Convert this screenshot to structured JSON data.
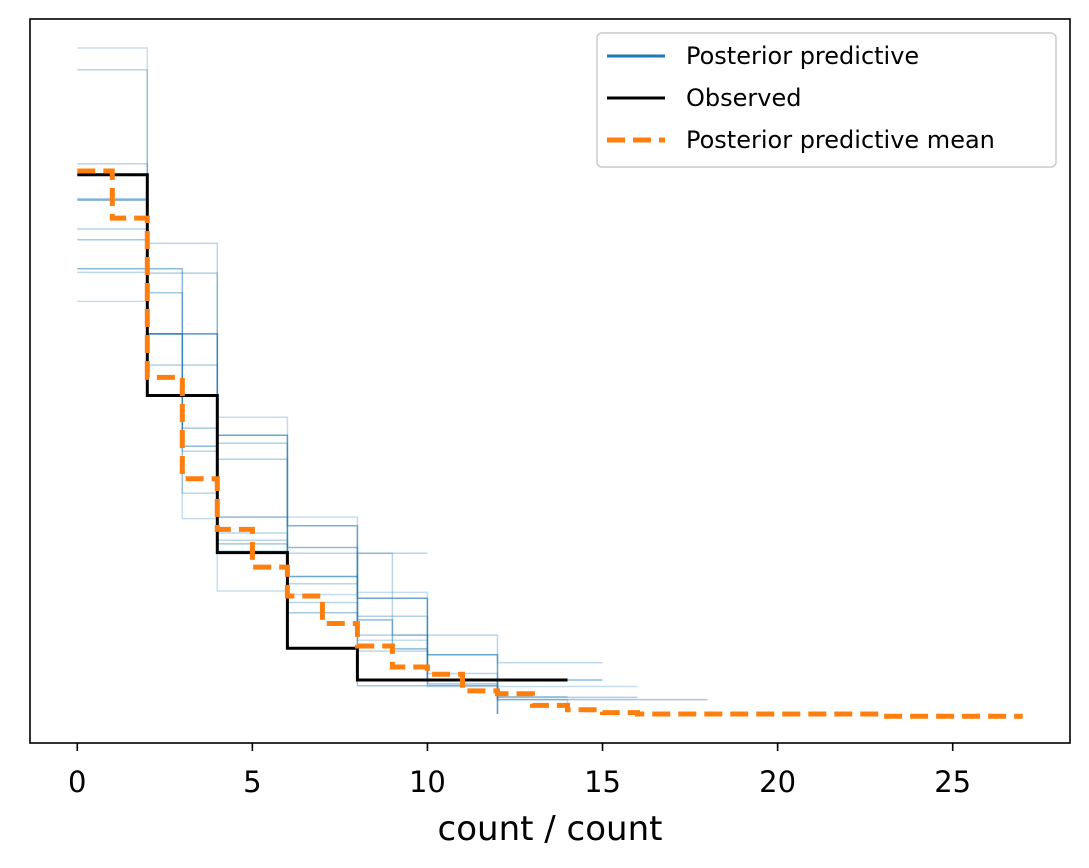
{
  "chart_data": {
    "type": "line",
    "title": "",
    "xlabel": "count / count",
    "ylabel": "",
    "xlim": [
      -1.35,
      28.35
    ],
    "ylim": [
      0,
      1
    ],
    "x_ticks": [
      0,
      5,
      10,
      15,
      20,
      25
    ],
    "y_ticks_shown": false,
    "grid": false,
    "legend": {
      "placement": "top-right",
      "entries": [
        {
          "label": "Posterior predictive",
          "color": "#1f77b4",
          "style": "solid"
        },
        {
          "label": "Observed",
          "color": "#000000",
          "style": "solid"
        },
        {
          "label": "Posterior predictive mean",
          "color": "#ff7f0e",
          "style": "dashed"
        }
      ]
    },
    "colors": {
      "posterior_predictive": "#1f77b4",
      "observed": "#000000",
      "mean": "#ff7f0e"
    },
    "series": [
      {
        "name": "Observed",
        "step": "post",
        "x": [
          0,
          2,
          4,
          6,
          8,
          14
        ],
        "y": [
          0.785,
          0.48,
          0.263,
          0.131,
          0.087,
          0.087
        ]
      },
      {
        "name": "Posterior predictive mean",
        "step": "post",
        "x": [
          0,
          1,
          2,
          3,
          4,
          5,
          6,
          7,
          8,
          9,
          10,
          11,
          12,
          13,
          14,
          15,
          16,
          17,
          18,
          19,
          20,
          21,
          22,
          23,
          24,
          25,
          26,
          27
        ],
        "y": [
          0.79,
          0.725,
          0.505,
          0.365,
          0.295,
          0.243,
          0.203,
          0.165,
          0.134,
          0.105,
          0.095,
          0.072,
          0.068,
          0.052,
          0.046,
          0.042,
          0.04,
          0.04,
          0.04,
          0.04,
          0.04,
          0.04,
          0.04,
          0.037,
          0.037,
          0.037,
          0.037,
          0.037
        ]
      },
      {
        "name": "Posterior predictive",
        "samples": [
          {
            "x": [
              0,
              2,
              4,
              6,
              8,
              10,
              12
            ],
            "y": [
              0.96,
              0.565,
              0.45,
              0.312,
              0.208,
              0.08,
              0.04
            ],
            "alpha": 0.25
          },
          {
            "x": [
              0,
              2,
              4,
              6,
              8,
              10,
              12
            ],
            "y": [
              0.75,
              0.565,
              0.425,
              0.23,
              0.2,
              0.122,
              0.04
            ],
            "alpha": 0.65
          },
          {
            "x": [
              0,
              3,
              4,
              6,
              8,
              9,
              10,
              15
            ],
            "y": [
              0.655,
              0.41,
              0.312,
              0.27,
              0.17,
              0.13,
              0.087,
              0.087
            ],
            "alpha": 0.5
          },
          {
            "x": [
              0,
              2,
              4,
              6,
              8,
              10,
              12,
              16
            ],
            "y": [
              0.71,
              0.522,
              0.392,
              0.3,
              0.175,
              0.082,
              0.063,
              0.063
            ],
            "alpha": 0.35
          },
          {
            "x": [
              0,
              2,
              3,
              4,
              6,
              8,
              10,
              16
            ],
            "y": [
              0.61,
              0.565,
              0.31,
              0.21,
              0.205,
              0.142,
              0.078,
              0.078
            ],
            "alpha": 0.25
          },
          {
            "x": [
              0,
              2,
              4,
              6,
              8,
              10
            ],
            "y": [
              0.93,
              0.69,
              0.28,
              0.22,
              0.262,
              0.262
            ],
            "alpha": 0.3
          },
          {
            "x": [
              0,
              2,
              3,
              4,
              6,
              8,
              12,
              18
            ],
            "y": [
              0.695,
              0.622,
              0.435,
              0.275,
              0.18,
              0.079,
              0.06,
              0.06
            ],
            "alpha": 0.4
          },
          {
            "x": [
              0,
              2,
              3,
              4,
              6,
              9,
              12,
              15
            ],
            "y": [
              0.8,
              0.565,
              0.345,
              0.29,
              0.262,
              0.149,
              0.111,
              0.111
            ],
            "alpha": 0.3
          },
          {
            "x": [
              0,
              2,
              4,
              6,
              8,
              10,
              12,
              14
            ],
            "y": [
              0.752,
              0.649,
              0.414,
              0.3,
              0.149,
              0.087,
              0.064,
              0.064
            ],
            "alpha": 0.35
          },
          {
            "x": [
              0,
              2,
              3,
              4,
              6,
              8,
              10,
              12,
              14
            ],
            "y": [
              0.65,
              0.565,
              0.403,
              0.265,
              0.194,
              0.127,
              0.096,
              0.06,
              0.048
            ],
            "alpha": 0.3
          }
        ]
      }
    ]
  }
}
